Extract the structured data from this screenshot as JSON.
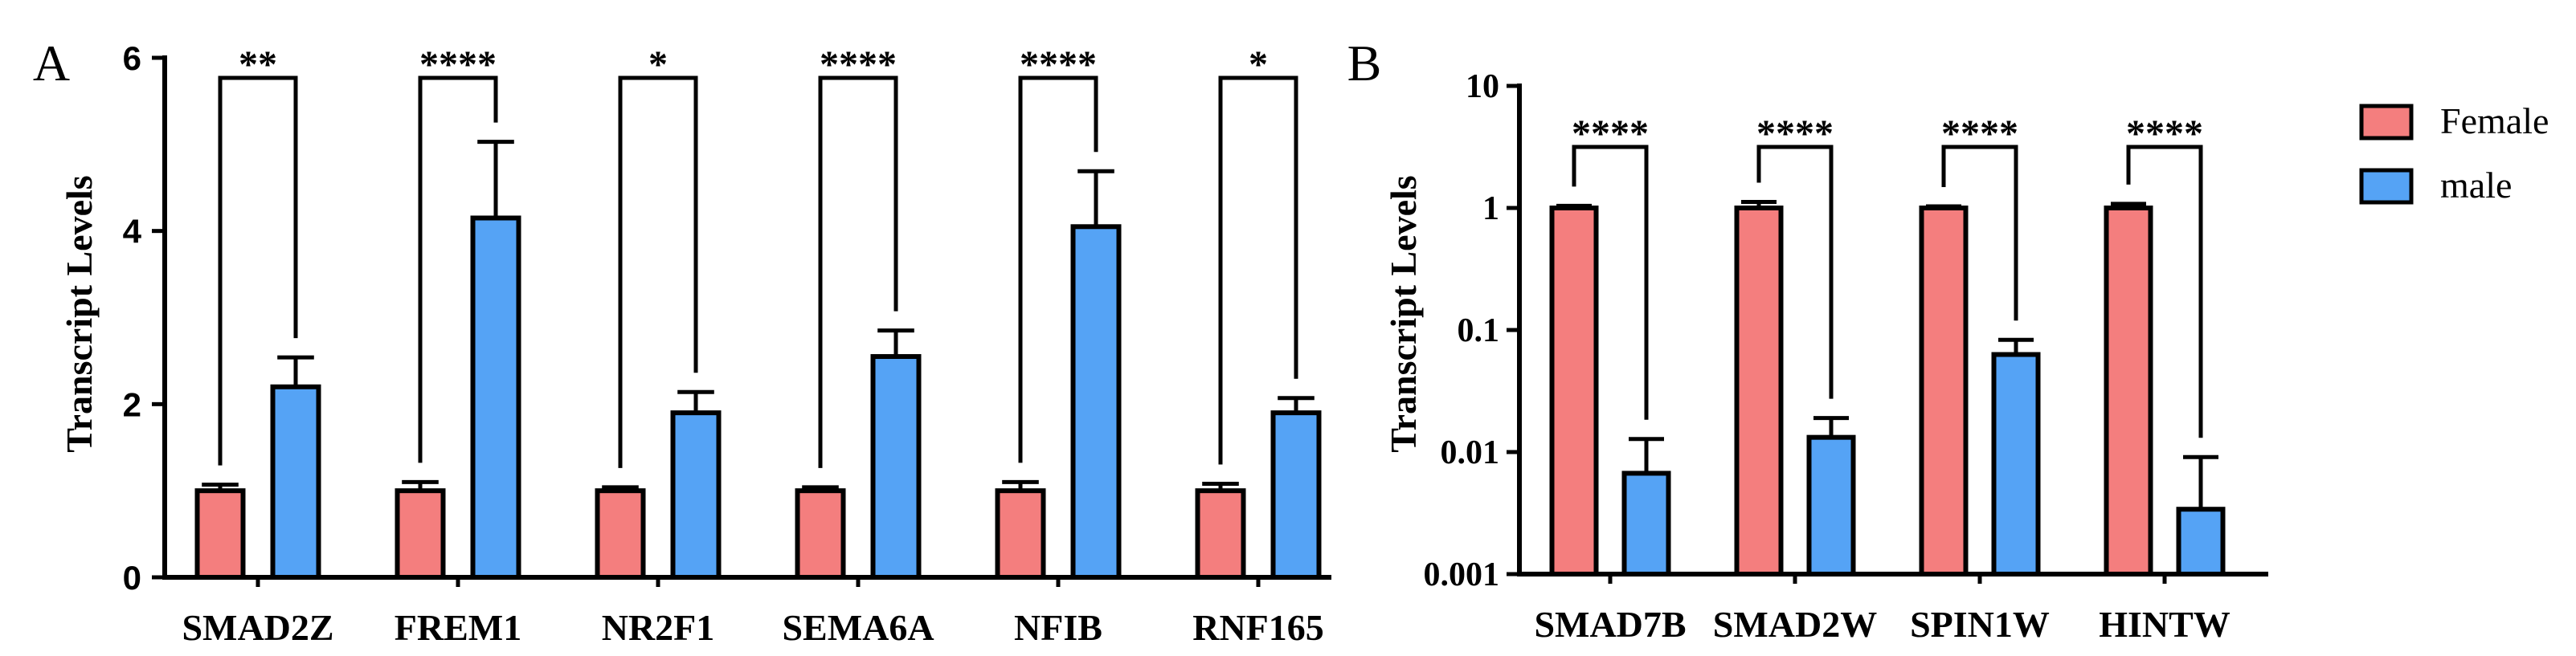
{
  "legend": {
    "position": "right",
    "entries": [
      {
        "label": "Female",
        "color": "#F47E7E"
      },
      {
        "label": "male",
        "color": "#55A3F5"
      }
    ]
  },
  "chart_data": [
    {
      "panel_label": "A",
      "type": "bar",
      "ylabel": "Transcript Levels",
      "log_y": false,
      "ylim": [
        0,
        6
      ],
      "yticks": [
        "0",
        "2",
        "4",
        "6"
      ],
      "categories": [
        "SMAD2Z",
        "FREM1",
        "NR2F1",
        "SEMA6A",
        "NFIB",
        "RNF165"
      ],
      "series": [
        {
          "legend_index": 0,
          "values": [
            1.0,
            1.0,
            1.0,
            1.0,
            1.0,
            1.0
          ],
          "error_plus": [
            0.07,
            0.1,
            0.04,
            0.04,
            0.1,
            0.08
          ]
        },
        {
          "legend_index": 1,
          "values": [
            2.2,
            4.15,
            1.9,
            2.55,
            4.05,
            1.9
          ],
          "error_plus": [
            0.34,
            0.88,
            0.24,
            0.3,
            0.64,
            0.17
          ]
        }
      ],
      "significance": [
        "**",
        "****",
        "*",
        "****",
        "****",
        "*"
      ]
    },
    {
      "panel_label": "B",
      "type": "bar",
      "ylabel": "Transcript Levels",
      "log_y": true,
      "ylim": [
        0.001,
        10
      ],
      "yticks": [
        "0.001",
        "0.01",
        "0.1",
        "1",
        "10"
      ],
      "categories": [
        "SMAD7B",
        "SMAD2W",
        "SPIN1W",
        "HINTW"
      ],
      "series": [
        {
          "legend_index": 0,
          "values": [
            1.0,
            1.0,
            1.0,
            1.0
          ],
          "error_plus": [
            0.04,
            0.12,
            0.03,
            0.08
          ]
        },
        {
          "legend_index": 1,
          "values": [
            0.0067,
            0.0132,
            0.063,
            0.0034
          ],
          "error_plus": [
            0.0061,
            0.0058,
            0.02,
            0.0057
          ]
        }
      ],
      "significance": [
        "****",
        "****",
        "****",
        "****"
      ]
    }
  ]
}
